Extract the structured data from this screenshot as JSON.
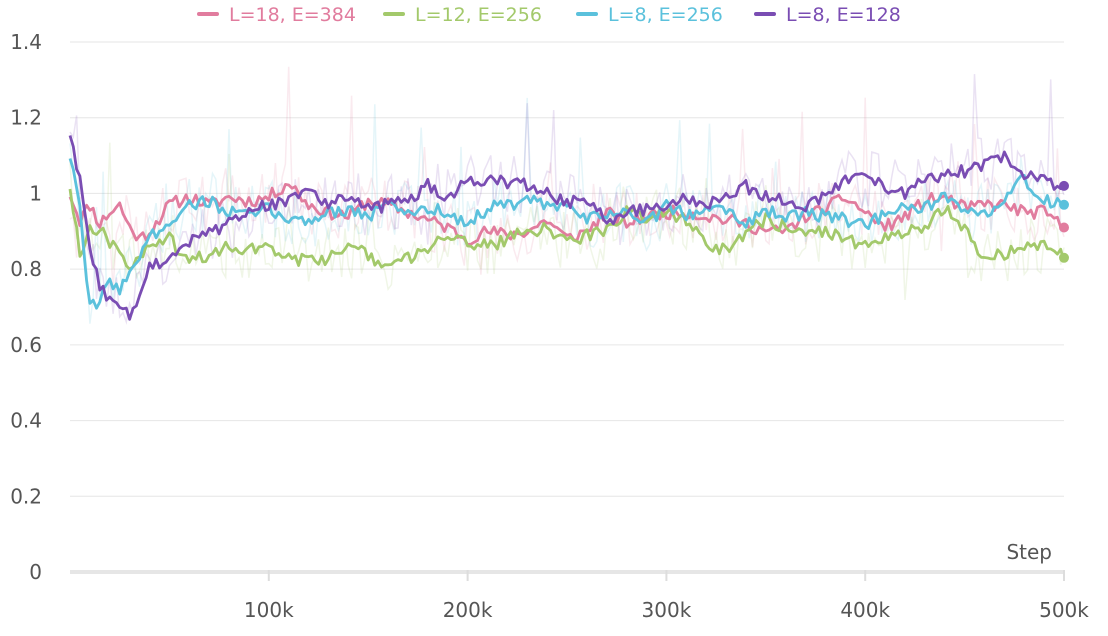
{
  "chart_data": {
    "type": "line",
    "title": "",
    "xlabel": "Step",
    "ylabel": "",
    "xlim": [
      0,
      500000
    ],
    "ylim": [
      0,
      1.4
    ],
    "x_ticks": [
      100000,
      200000,
      300000,
      400000,
      500000
    ],
    "x_tick_labels": [
      "100k",
      "200k",
      "300k",
      "400k",
      "500k"
    ],
    "y_ticks": [
      0,
      0.2,
      0.4,
      0.6,
      0.8,
      1,
      1.2,
      1.4
    ],
    "y_tick_labels": [
      "0",
      "0.2",
      "0.4",
      "0.6",
      "0.8",
      "1",
      "1.2",
      "1.4"
    ],
    "grid": true,
    "legend_position": "top",
    "smoothed": true,
    "x": [
      0,
      5000,
      10000,
      15000,
      20000,
      25000,
      30000,
      35000,
      40000,
      50000,
      60000,
      70000,
      80000,
      90000,
      100000,
      110000,
      120000,
      130000,
      140000,
      150000,
      160000,
      170000,
      180000,
      190000,
      200000,
      210000,
      220000,
      230000,
      240000,
      250000,
      260000,
      270000,
      280000,
      290000,
      300000,
      310000,
      320000,
      330000,
      340000,
      350000,
      360000,
      370000,
      380000,
      390000,
      400000,
      410000,
      420000,
      430000,
      440000,
      450000,
      460000,
      470000,
      480000,
      490000,
      500000
    ],
    "series": [
      {
        "name": "L=18, E=384",
        "color": "#e17c9e",
        "values": [
          1.0,
          0.93,
          0.97,
          0.92,
          0.95,
          0.97,
          0.91,
          0.88,
          0.9,
          0.97,
          0.99,
          0.97,
          0.99,
          0.98,
          0.99,
          1.03,
          0.97,
          0.95,
          0.94,
          0.98,
          0.97,
          0.95,
          0.93,
          0.91,
          0.88,
          0.9,
          0.89,
          0.9,
          0.93,
          0.88,
          0.9,
          0.95,
          0.92,
          0.94,
          0.95,
          0.95,
          0.94,
          0.93,
          0.92,
          0.9,
          0.9,
          0.94,
          0.96,
          0.99,
          0.95,
          0.91,
          0.94,
          0.98,
          0.99,
          0.96,
          0.97,
          0.97,
          0.95,
          0.95,
          0.91
        ]
      },
      {
        "name": "L=12, E=256",
        "color": "#a3c96b",
        "values": [
          1.02,
          0.85,
          0.9,
          0.91,
          0.87,
          0.85,
          0.8,
          0.83,
          0.86,
          0.88,
          0.82,
          0.84,
          0.86,
          0.85,
          0.86,
          0.83,
          0.82,
          0.83,
          0.85,
          0.84,
          0.8,
          0.83,
          0.85,
          0.9,
          0.87,
          0.86,
          0.88,
          0.9,
          0.91,
          0.87,
          0.89,
          0.9,
          0.95,
          0.94,
          0.95,
          0.93,
          0.87,
          0.85,
          0.9,
          0.93,
          0.91,
          0.89,
          0.9,
          0.88,
          0.86,
          0.88,
          0.9,
          0.91,
          0.96,
          0.9,
          0.83,
          0.84,
          0.86,
          0.87,
          0.83
        ]
      },
      {
        "name": "L=8, E=256",
        "color": "#5bc1dc",
        "values": [
          1.1,
          0.95,
          0.7,
          0.72,
          0.76,
          0.75,
          0.8,
          0.83,
          0.88,
          0.93,
          0.97,
          0.98,
          0.95,
          0.94,
          0.96,
          0.93,
          0.93,
          0.95,
          0.96,
          0.94,
          0.97,
          0.95,
          0.96,
          0.95,
          0.92,
          0.96,
          0.97,
          0.98,
          0.97,
          0.96,
          0.93,
          0.95,
          0.95,
          0.92,
          0.97,
          0.94,
          0.97,
          0.96,
          0.92,
          0.96,
          0.93,
          0.95,
          0.94,
          0.93,
          0.92,
          0.94,
          0.96,
          0.96,
          0.99,
          0.94,
          0.95,
          0.98,
          1.04,
          0.98,
          0.97
        ]
      },
      {
        "name": "L=8, E=128",
        "color": "#7a4db3",
        "values": [
          1.16,
          1.03,
          0.85,
          0.75,
          0.72,
          0.69,
          0.68,
          0.74,
          0.8,
          0.84,
          0.87,
          0.9,
          0.92,
          0.95,
          0.97,
          0.98,
          1.02,
          0.97,
          0.99,
          0.96,
          0.97,
          0.98,
          1.02,
          0.99,
          1.03,
          1.04,
          1.03,
          1.02,
          1.0,
          0.98,
          0.97,
          0.93,
          0.95,
          0.96,
          0.97,
          0.99,
          0.97,
          1.0,
          1.02,
          0.99,
          0.98,
          0.96,
          1.0,
          1.03,
          1.04,
          1.02,
          1.0,
          1.04,
          1.05,
          1.06,
          1.08,
          1.1,
          1.05,
          1.03,
          1.02
        ]
      }
    ]
  }
}
